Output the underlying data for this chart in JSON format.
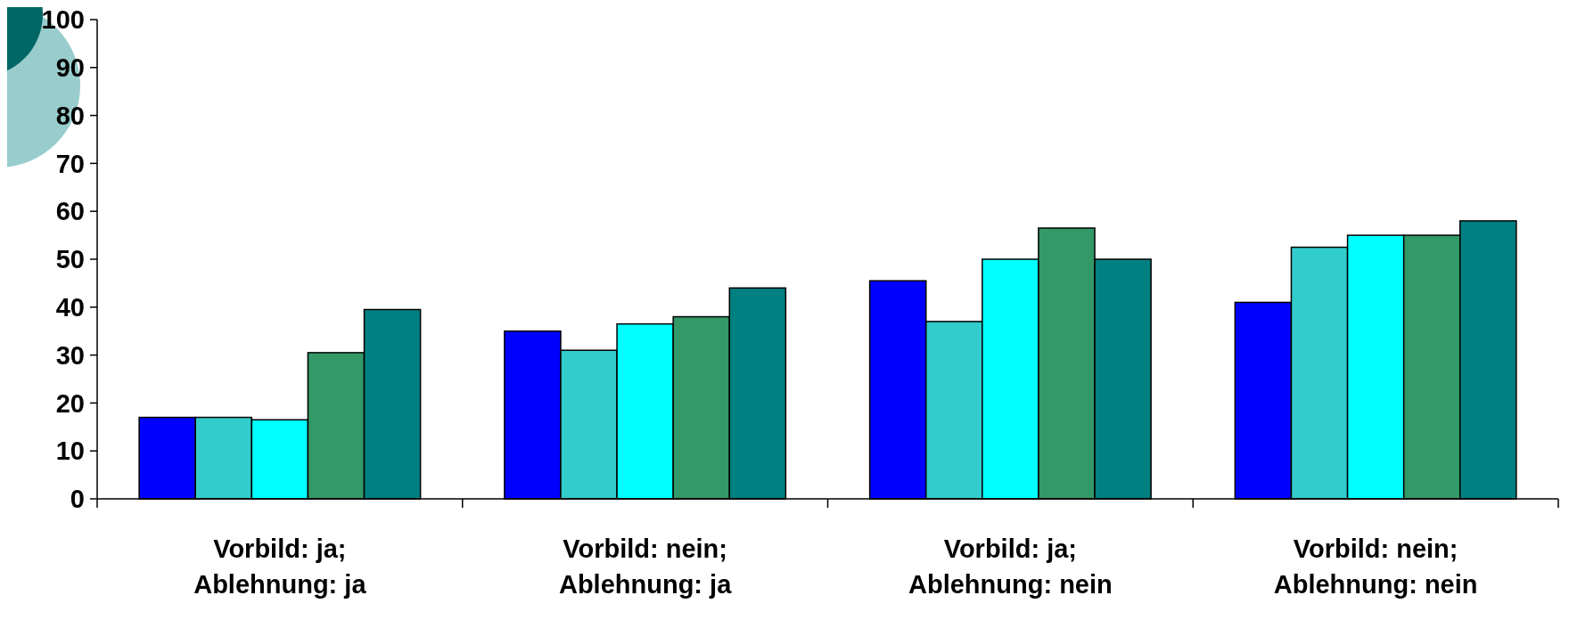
{
  "chart_data": {
    "type": "bar",
    "categories": [
      "Vorbild: ja;\nAblehnung: ja",
      "Vorbild: nein;\nAblehnung: ja",
      "Vorbild: ja;\nAblehnung: nein",
      "Vorbild: nein;\nAblehnung: nein"
    ],
    "series": [
      {
        "color": "#0000ff",
        "values": [
          17,
          35,
          45.5,
          41
        ]
      },
      {
        "color": "#33cccc",
        "values": [
          17,
          31,
          37,
          52.5
        ]
      },
      {
        "color": "#00ffff",
        "values": [
          16.5,
          36.5,
          50,
          55
        ]
      },
      {
        "color": "#339966",
        "values": [
          30.5,
          38,
          56.5,
          55
        ]
      },
      {
        "color": "#008080",
        "values": [
          39.5,
          44,
          50,
          58
        ]
      }
    ],
    "ylim": [
      0,
      100
    ],
    "yticks": [
      0,
      10,
      20,
      30,
      40,
      50,
      60,
      70,
      80,
      90,
      100
    ],
    "grid": false
  }
}
